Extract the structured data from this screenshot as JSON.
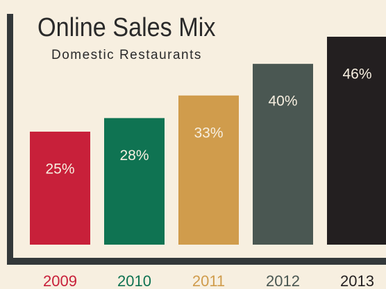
{
  "chart_data": {
    "type": "bar",
    "title": "Online Sales Mix",
    "subtitle": "Domestic Restaurants",
    "categories": [
      "2009",
      "2010",
      "2011",
      "2012",
      "2013"
    ],
    "values": [
      25,
      28,
      33,
      40,
      46
    ],
    "value_labels": [
      "25%",
      "28%",
      "33%",
      "40%",
      "46%"
    ],
    "colors": [
      "#c8203a",
      "#0f7352",
      "#d09c4c",
      "#4a5752",
      "#231f20"
    ]
  }
}
